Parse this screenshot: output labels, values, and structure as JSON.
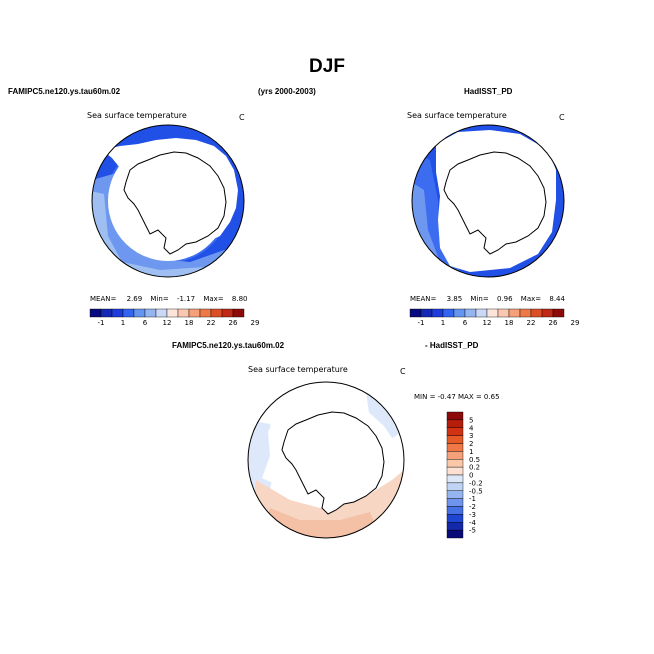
{
  "main_title": "DJF",
  "panels": {
    "left": {
      "case": "FAMIPC5.ne120.ys.tau60m.02",
      "title": "Sea surface temperature",
      "units": "C",
      "mean_label": "MEAN=",
      "mean": "2.69",
      "min_label": "Min=",
      "min": "-1.17",
      "max_label": "Max=",
      "max": "8.80"
    },
    "right": {
      "case": "HadISST_PD",
      "title": "Sea surface temperature",
      "units": "C",
      "mean_label": "MEAN=",
      "mean": "3.85",
      "min_label": "Min=",
      "min": "0.96",
      "max_label": "Max=",
      "max": "8.44"
    },
    "diff": {
      "case_a": "FAMIPC5.ne120.ys.tau60m.02",
      "case_b": "- HadISST_PD",
      "title": "Sea surface temperature",
      "units": "C",
      "minmax": "MIN =  -0.47  MAX =   0.65"
    }
  },
  "years": "(yrs 2000-2003)",
  "abs_colorbar": {
    "labels": [
      "-1",
      "1",
      "6",
      "12",
      "18",
      "22",
      "26",
      "29"
    ],
    "colors": [
      "#0a0a80",
      "#1428b4",
      "#1e3cdc",
      "#3264f0",
      "#6496f0",
      "#96b4f0",
      "#c8d8f5",
      "#fce6dc",
      "#fac8b0",
      "#f5a078",
      "#ee7846",
      "#dc5028",
      "#be2814",
      "#8c0a0a"
    ]
  },
  "diff_colorbar": {
    "labels": [
      "5",
      "4",
      "3",
      "2",
      "1",
      "0.5",
      "0.2",
      "0",
      "-0.2",
      "-0.5",
      "-1",
      "-2",
      "-3",
      "-4",
      "-5"
    ],
    "colors": [
      "#8c0a0a",
      "#b41e0a",
      "#d23214",
      "#e65a28",
      "#f07846",
      "#f5a078",
      "#fac8a8",
      "#fce1d2",
      "#dce8f8",
      "#c0d4f5",
      "#96b4f0",
      "#6e94ee",
      "#4670e6",
      "#1e46d2",
      "#1428aa",
      "#0a0a78"
    ]
  },
  "map_colors": {
    "ocean_deep": "#2050e6",
    "ocean_mid": "#3c6cf0",
    "ocean_light": "#6e98f0",
    "ocean_pale": "#9fbff2",
    "diff_blue": "#dde9fa",
    "diff_pink": "#f8d6c4",
    "diff_pink_dark": "#f4c0a6"
  }
}
